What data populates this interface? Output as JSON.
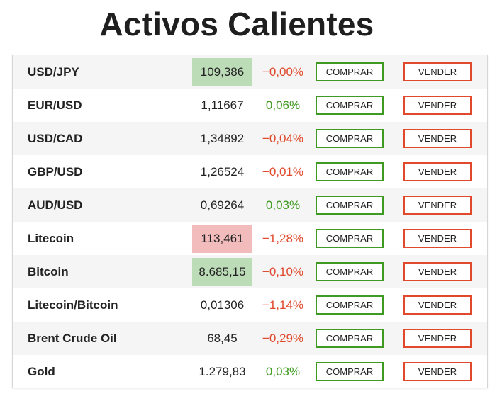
{
  "title": "Activos Calientes",
  "colors": {
    "positive": "#3f9a21",
    "negative": "#e0492b",
    "flash_up": "#bcdcb8",
    "flash_down": "#f3bcbc"
  },
  "buy_label": "COMPRAR",
  "sell_label": "VENDER",
  "assets": [
    {
      "name": "USD/JPY",
      "price": "109,386",
      "change": "−0,00%",
      "direction": "negative",
      "flash": "up"
    },
    {
      "name": "EUR/USD",
      "price": "1,11667",
      "change": "0,06%",
      "direction": "positive",
      "flash": "none"
    },
    {
      "name": "USD/CAD",
      "price": "1,34892",
      "change": "−0,04%",
      "direction": "negative",
      "flash": "none"
    },
    {
      "name": "GBP/USD",
      "price": "1,26524",
      "change": "−0,01%",
      "direction": "negative",
      "flash": "none"
    },
    {
      "name": "AUD/USD",
      "price": "0,69264",
      "change": "0,03%",
      "direction": "positive",
      "flash": "none"
    },
    {
      "name": "Litecoin",
      "price": "113,461",
      "change": "−1,28%",
      "direction": "negative",
      "flash": "down"
    },
    {
      "name": "Bitcoin",
      "price": "8.685,15",
      "change": "−0,10%",
      "direction": "negative",
      "flash": "up"
    },
    {
      "name": "Litecoin/Bitcoin",
      "price": "0,01306",
      "change": "−1,14%",
      "direction": "negative",
      "flash": "none"
    },
    {
      "name": "Brent Crude Oil",
      "price": "68,45",
      "change": "−0,29%",
      "direction": "negative",
      "flash": "none"
    },
    {
      "name": "Gold",
      "price": "1.279,83",
      "change": "0,03%",
      "direction": "positive",
      "flash": "none"
    }
  ]
}
